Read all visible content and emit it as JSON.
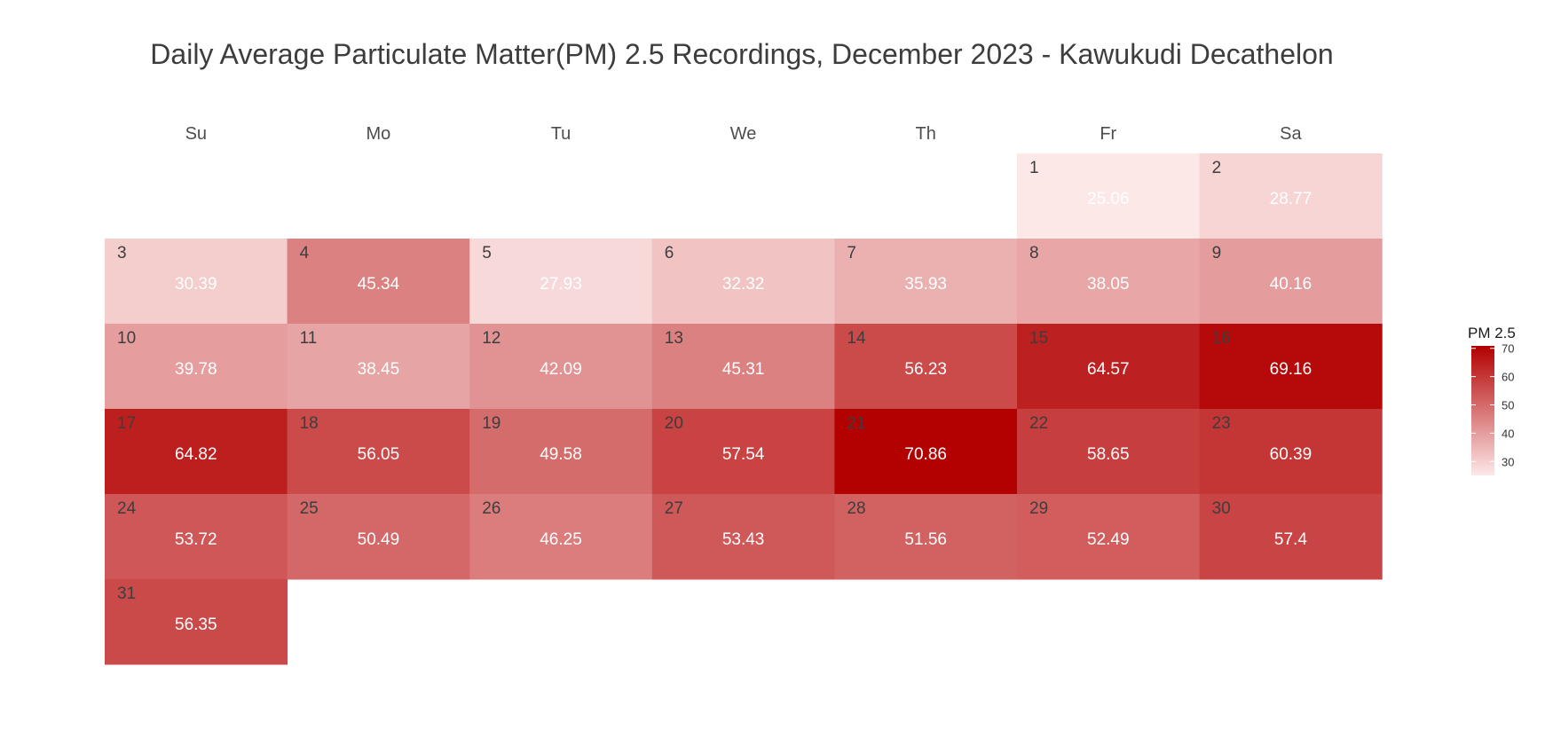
{
  "chart_data": {
    "type": "heatmap",
    "title": "Daily Average Particulate Matter(PM) 2.5 Recordings, December 2023 - Kawukudi Decathelon",
    "weekdays": [
      "Su",
      "Mo",
      "Tu",
      "We",
      "Th",
      "Fr",
      "Sa"
    ],
    "first_weekday_index": 5,
    "days": [
      {
        "day": "1",
        "value": 25.06
      },
      {
        "day": "2",
        "value": 28.77
      },
      {
        "day": "3",
        "value": 30.39
      },
      {
        "day": "4",
        "value": 45.34
      },
      {
        "day": "5",
        "value": 27.93
      },
      {
        "day": "6",
        "value": 32.32
      },
      {
        "day": "7",
        "value": 35.93
      },
      {
        "day": "8",
        "value": 38.05
      },
      {
        "day": "9",
        "value": 40.16
      },
      {
        "day": "10",
        "value": 39.78
      },
      {
        "day": "11",
        "value": 38.45
      },
      {
        "day": "12",
        "value": 42.09
      },
      {
        "day": "13",
        "value": 45.31
      },
      {
        "day": "14",
        "value": 56.23
      },
      {
        "day": "15",
        "value": 64.57
      },
      {
        "day": "16",
        "value": 69.16
      },
      {
        "day": "17",
        "value": 64.82
      },
      {
        "day": "18",
        "value": 56.05
      },
      {
        "day": "19",
        "value": 49.58
      },
      {
        "day": "20",
        "value": 57.54
      },
      {
        "day": "21",
        "value": 70.86
      },
      {
        "day": "22",
        "value": 58.65
      },
      {
        "day": "23",
        "value": 60.39
      },
      {
        "day": "24",
        "value": 53.72
      },
      {
        "day": "25",
        "value": 50.49
      },
      {
        "day": "26",
        "value": 46.25
      },
      {
        "day": "27",
        "value": 53.43
      },
      {
        "day": "28",
        "value": 51.56
      },
      {
        "day": "29",
        "value": 52.49
      },
      {
        "day": "30",
        "value": 57.4
      },
      {
        "day": "31",
        "value": 56.35
      }
    ],
    "legend": {
      "title": "PM 2.5",
      "ticks": [
        70,
        60,
        50,
        40,
        30
      ],
      "range": [
        25.06,
        70.86
      ],
      "placement": "right"
    },
    "color_low": "#fde8e8",
    "color_high": "#b30000"
  }
}
